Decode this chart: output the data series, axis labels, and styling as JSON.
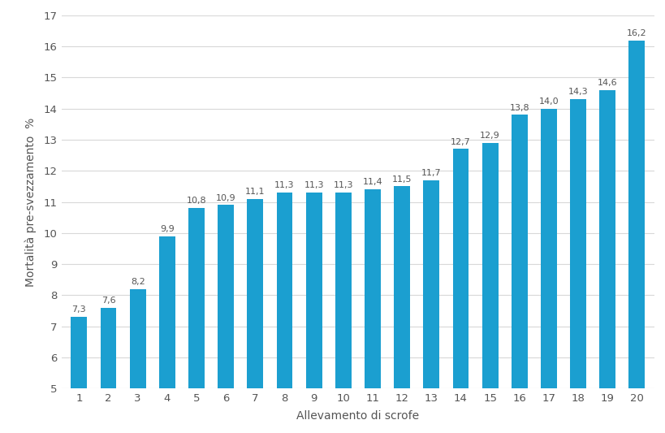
{
  "categories": [
    1,
    2,
    3,
    4,
    5,
    6,
    7,
    8,
    9,
    10,
    11,
    12,
    13,
    14,
    15,
    16,
    17,
    18,
    19,
    20
  ],
  "values": [
    7.3,
    7.6,
    8.2,
    9.9,
    10.8,
    10.9,
    11.1,
    11.3,
    11.3,
    11.3,
    11.4,
    11.5,
    11.7,
    12.7,
    12.9,
    13.8,
    14.0,
    14.3,
    14.6,
    16.2
  ],
  "bar_color": "#1b9fd0",
  "xlabel": "Allevamento di scrofe",
  "ylabel": "Mortalità pre-svezzamento  %",
  "ylim": [
    5,
    17
  ],
  "yticks": [
    5,
    6,
    7,
    8,
    9,
    10,
    11,
    12,
    13,
    14,
    15,
    16,
    17
  ],
  "background_color": "#ffffff",
  "grid_color": "#d8d8d8",
  "label_fontsize": 9.5,
  "axis_label_fontsize": 10,
  "bar_label_fontsize": 8,
  "bar_width": 0.55
}
